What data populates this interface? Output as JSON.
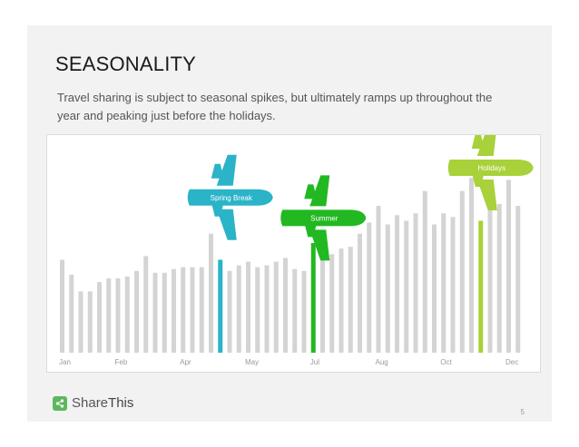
{
  "slide": {
    "title": "SEASONALITY",
    "subtitle": "Travel sharing is subject to seasonal spikes, but ultimately ramps up throughout the year and peaking just before the holidays.",
    "page_number": "5"
  },
  "logo": {
    "icon": "share-icon",
    "text_share": "Share",
    "text_this": "This",
    "color": "#5cb85c"
  },
  "chart_data": {
    "type": "bar",
    "title": "",
    "xlabel": "",
    "ylabel": "",
    "ylim": [
      0,
      100
    ],
    "grid": false,
    "bar_color": "#d4d4d4",
    "month_labels": [
      {
        "label": "Jan",
        "index": 0
      },
      {
        "label": "Feb",
        "index": 6
      },
      {
        "label": "Apr",
        "index": 13
      },
      {
        "label": "May",
        "index": 20
      },
      {
        "label": "Jul",
        "index": 27
      },
      {
        "label": "Aug",
        "index": 34
      },
      {
        "label": "Oct",
        "index": 41
      },
      {
        "label": "Dec",
        "index": 48
      }
    ],
    "values": [
      50,
      42,
      33,
      33,
      38,
      40,
      40,
      41,
      44,
      52,
      43,
      43,
      45,
      46,
      46,
      46,
      64,
      50,
      44,
      47,
      49,
      46,
      47,
      49,
      51,
      45,
      44,
      59,
      58,
      53,
      56,
      57,
      64,
      70,
      79,
      69,
      74,
      71,
      75,
      87,
      69,
      75,
      73,
      87,
      94,
      71,
      90,
      80,
      93,
      79
    ],
    "annotations": [
      {
        "label": "Spring Break",
        "index": 17,
        "value": 84,
        "color": "#2bb3c8"
      },
      {
        "label": "Summer",
        "index": 27,
        "value": 73,
        "color": "#22b822"
      },
      {
        "label": "Holidays",
        "index": 45,
        "value": 100,
        "color": "#a8d13a"
      }
    ]
  }
}
